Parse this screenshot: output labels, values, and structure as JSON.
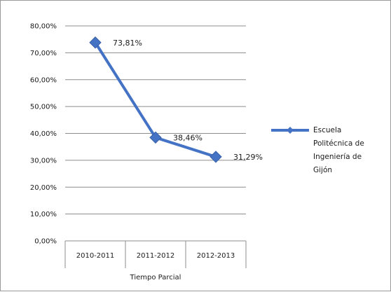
{
  "chart_data": {
    "type": "line",
    "categories": [
      "2010-2011",
      "2011-2012",
      "2012-2013"
    ],
    "series": [
      {
        "name": "Escuela Politécnica de Ingeniería de Gijón",
        "values": [
          73.81,
          38.46,
          31.29
        ],
        "data_labels": [
          "73,81%",
          "38,46%",
          "31,29%"
        ],
        "color": "#4472c4"
      }
    ],
    "xlabel": "Tiempo Parcial",
    "ylabel": "",
    "ylim": [
      0,
      80
    ],
    "y_ticks": [
      0,
      10,
      20,
      30,
      40,
      50,
      60,
      70,
      80
    ],
    "y_tick_labels": [
      "0,00%",
      "10,00%",
      "20,00%",
      "30,00%",
      "40,00%",
      "50,00%",
      "60,00%",
      "70,00%",
      "80,00%"
    ],
    "grid": true,
    "legend_position": "right",
    "legend_lines": [
      "Escuela",
      "Politécnica de",
      "Ingeniería de",
      "Gijón"
    ]
  }
}
